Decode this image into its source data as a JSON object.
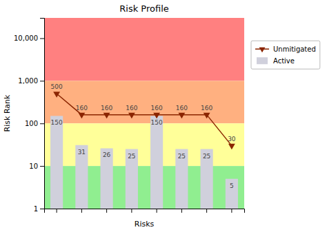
{
  "chart_data": {
    "type": "bar",
    "title": "Risk Profile",
    "xlabel": "Risks",
    "ylabel": "Risk Rank",
    "categories": [
      null,
      null,
      null,
      null,
      null,
      null,
      null,
      null
    ],
    "series": [
      {
        "name": "Unmitigated",
        "type": "line",
        "color": "#8B2500",
        "marker": "triangle-down",
        "values": [
          500,
          160,
          160,
          160,
          160,
          160,
          160,
          30
        ]
      },
      {
        "name": "Active",
        "type": "bar",
        "color": "#D0D0DC",
        "values": [
          150,
          31,
          26,
          25,
          150,
          25,
          25,
          5
        ]
      }
    ],
    "log": "y",
    "ylim": [
      1,
      30000
    ],
    "yticks": [
      1,
      10,
      100,
      {
        "value": 1000,
        "label": "1,000"
      },
      {
        "value": 10000,
        "label": "10,000"
      }
    ],
    "zones": [
      {
        "from": 1000,
        "to": 30000,
        "color": "#FF8080"
      },
      {
        "from": 100,
        "to": 1000,
        "color": "#FFB080"
      },
      {
        "from": 10,
        "to": 100,
        "color": "#FFFF99"
      },
      {
        "from": 1,
        "to": 10,
        "color": "#90EE90"
      }
    ],
    "grid": false,
    "legend": "right",
    "data_labels": true,
    "tick_labels": "y"
  }
}
